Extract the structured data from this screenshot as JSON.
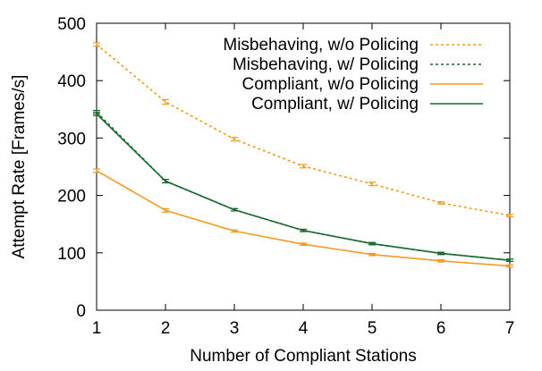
{
  "chart_data": {
    "type": "line",
    "title": "",
    "xlabel": "Number of Compliant Stations",
    "ylabel": "Attempt Rate [Frames/s]",
    "x": [
      1,
      2,
      3,
      4,
      5,
      6,
      7
    ],
    "xlim": [
      1,
      7
    ],
    "ylim": [
      0,
      500
    ],
    "xticks": [
      "1",
      "2",
      "3",
      "4",
      "5",
      "6",
      "7"
    ],
    "yticks": [
      "0",
      "100",
      "200",
      "300",
      "400",
      "500"
    ],
    "grid": false,
    "legend_position": "top-right",
    "series": [
      {
        "name": "Misbehaving, w/o Policing",
        "color": "#f29b1d",
        "dash": "dotted",
        "values": [
          463,
          363,
          298,
          251,
          220,
          187,
          165
        ],
        "errors": [
          3,
          4,
          3,
          3,
          3,
          2,
          2
        ]
      },
      {
        "name": "Misbehaving, w/ Policing",
        "color": "#1a6a2c",
        "dash": "dotted",
        "values": [
          345,
          225,
          175,
          139,
          116,
          99,
          87
        ],
        "errors": [
          3,
          3,
          2,
          2,
          2,
          2,
          2
        ]
      },
      {
        "name": "Compliant, w/o Policing",
        "color": "#f29b1d",
        "dash": "solid",
        "values": [
          243,
          174,
          138,
          115,
          97,
          86,
          77
        ],
        "errors": [
          3,
          3,
          2,
          2,
          2,
          2,
          2
        ]
      },
      {
        "name": "Compliant, w/ Policing",
        "color": "#1a6a2c",
        "dash": "solid",
        "values": [
          342,
          225,
          175,
          139,
          116,
          99,
          87
        ],
        "errors": [
          3,
          3,
          2,
          2,
          2,
          2,
          2
        ]
      }
    ]
  }
}
